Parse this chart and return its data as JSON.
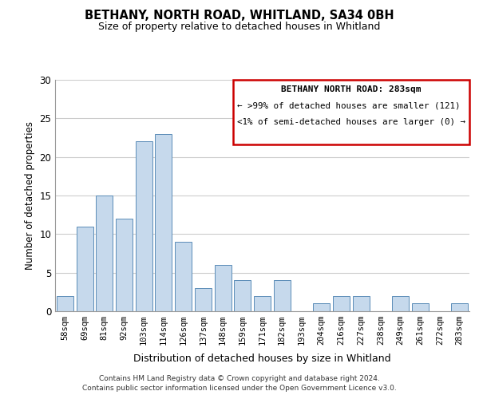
{
  "title": "BETHANY, NORTH ROAD, WHITLAND, SA34 0BH",
  "subtitle": "Size of property relative to detached houses in Whitland",
  "xlabel": "Distribution of detached houses by size in Whitland",
  "ylabel": "Number of detached properties",
  "bar_labels": [
    "58sqm",
    "69sqm",
    "81sqm",
    "92sqm",
    "103sqm",
    "114sqm",
    "126sqm",
    "137sqm",
    "148sqm",
    "159sqm",
    "171sqm",
    "182sqm",
    "193sqm",
    "204sqm",
    "216sqm",
    "227sqm",
    "238sqm",
    "249sqm",
    "261sqm",
    "272sqm",
    "283sqm"
  ],
  "bar_values": [
    2,
    11,
    15,
    12,
    22,
    23,
    9,
    3,
    6,
    4,
    2,
    4,
    0,
    1,
    2,
    2,
    0,
    2,
    1,
    0,
    1
  ],
  "bar_color": "#c6d9ec",
  "bar_edge_color": "#5b8db8",
  "ylim": [
    0,
    30
  ],
  "yticks": [
    0,
    5,
    10,
    15,
    20,
    25,
    30
  ],
  "legend_title": "BETHANY NORTH ROAD: 283sqm",
  "legend_line1": "← >99% of detached houses are smaller (121)",
  "legend_line2": "<1% of semi-detached houses are larger (0) →",
  "legend_box_color": "#ffffff",
  "legend_box_edge_color": "#cc0000",
  "footer_line1": "Contains HM Land Registry data © Crown copyright and database right 2024.",
  "footer_line2": "Contains public sector information licensed under the Open Government Licence v3.0.",
  "background_color": "#ffffff",
  "grid_color": "#cccccc"
}
